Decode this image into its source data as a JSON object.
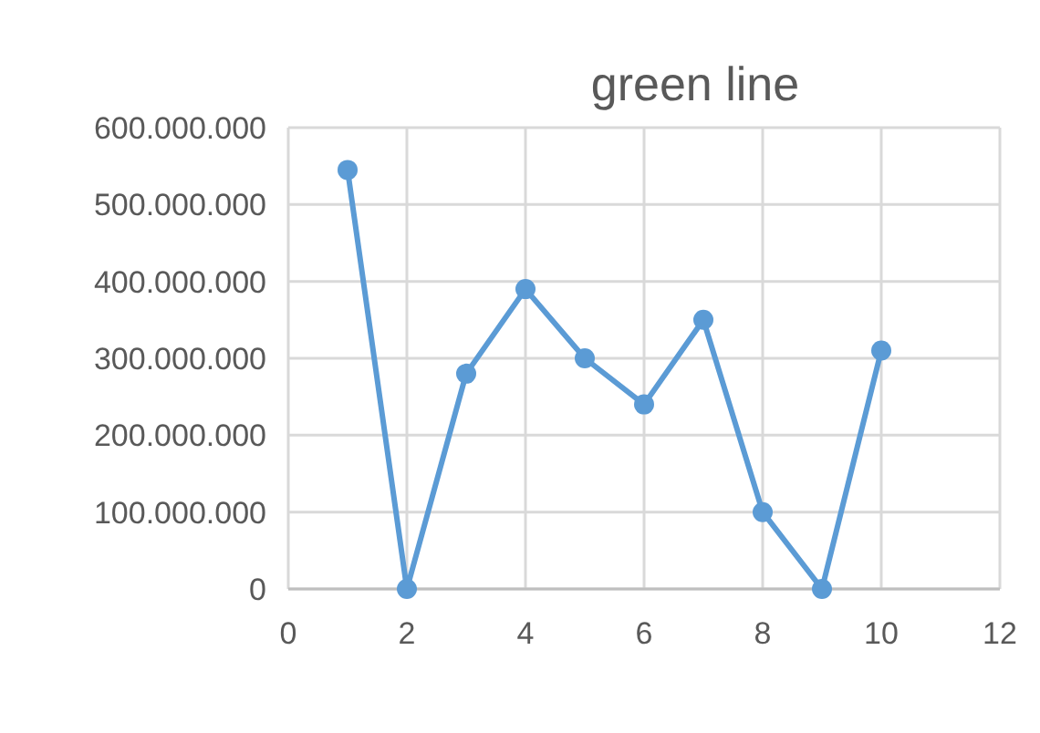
{
  "chart_data": {
    "type": "line",
    "title": "green line",
    "x": [
      1,
      2,
      3,
      4,
      5,
      6,
      7,
      8,
      9,
      10
    ],
    "series": [
      {
        "color": "#5b9bd5",
        "values": [
          545000000,
          0,
          280000000,
          390000000,
          300000000,
          240000000,
          350000000,
          100000000,
          0,
          310000000
        ]
      }
    ],
    "xlim": [
      0,
      12
    ],
    "xticks": [
      0,
      2,
      4,
      6,
      8,
      10,
      12
    ],
    "ylim": [
      0,
      600000000
    ],
    "yticks": [
      {
        "value": 0,
        "label": "0"
      },
      {
        "value": 100000000,
        "label": "100.000.000"
      },
      {
        "value": 200000000,
        "label": "200.000.000"
      },
      {
        "value": 300000000,
        "label": "300.000.000"
      },
      {
        "value": 400000000,
        "label": "400.000.000"
      },
      {
        "value": 500000000,
        "label": "500.000.000"
      },
      {
        "value": 600000000,
        "label": "600.000.000"
      }
    ],
    "grid": true,
    "marker": "circle",
    "line_style": "solid"
  }
}
